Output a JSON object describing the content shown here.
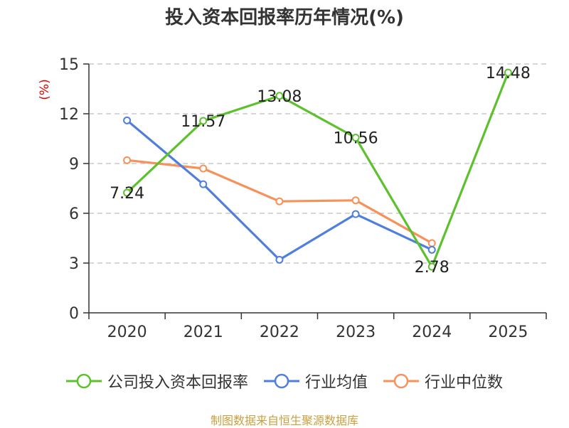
{
  "chart_data": {
    "type": "line",
    "title": "投入资本回报率历年情况(%)",
    "ylabel": "(%)",
    "xlabel": "",
    "categories": [
      "2020",
      "2021",
      "2022",
      "2023",
      "2024",
      "2025"
    ],
    "ylim": [
      0,
      15
    ],
    "yticks": [
      0,
      3,
      6,
      9,
      12,
      15
    ],
    "grid": true,
    "legend_position": "bottom",
    "series": [
      {
        "name": "公司投入资本回报率",
        "color": "#5cc12d",
        "values": [
          7.24,
          11.57,
          13.08,
          10.56,
          2.78,
          14.48
        ],
        "labels": [
          "7.24",
          "11.57",
          "13.08",
          "10.56",
          "2.78",
          "14.48"
        ],
        "show_labels": true
      },
      {
        "name": "行业均值",
        "color": "#4f7fdc",
        "values": [
          11.6,
          7.75,
          3.2,
          5.95,
          3.8,
          null
        ],
        "show_labels": false
      },
      {
        "name": "行业中位数",
        "color": "#f7915a",
        "values": [
          9.2,
          8.7,
          6.72,
          6.78,
          4.2,
          null
        ],
        "show_labels": false
      }
    ]
  },
  "source": "制图数据来自恒生聚源数据库"
}
